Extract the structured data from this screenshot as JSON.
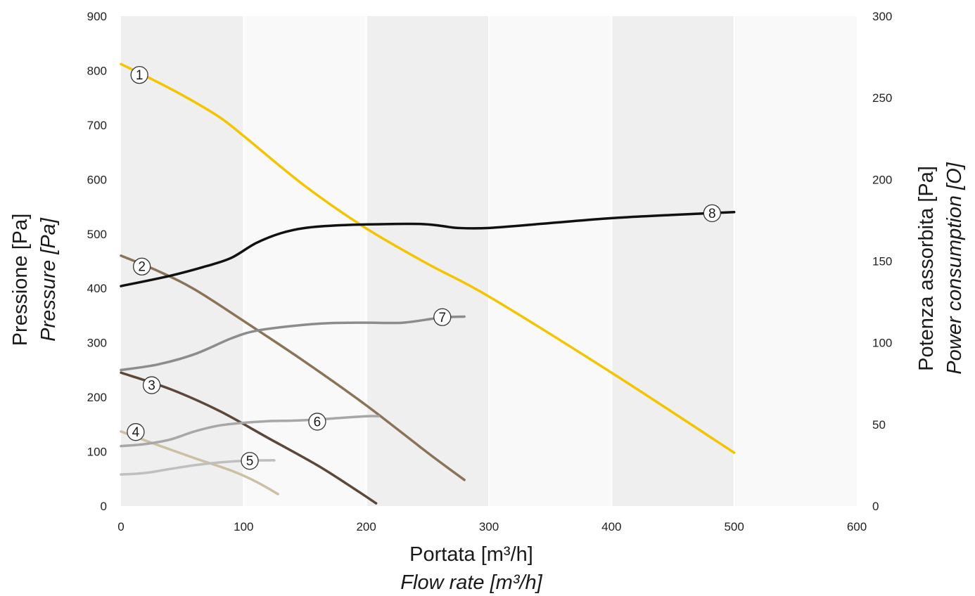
{
  "chart_data": {
    "type": "line",
    "xlabel": "Portata [m³/h]",
    "xlabel_en": "Flow rate [m³/h]",
    "ylabel": "Pressione [Pa]",
    "ylabel_en": "Pressure [Pa]",
    "y2label": "Potenza assorbita [Pa]",
    "y2label_en": "Power consumption [O]",
    "xlim": [
      0,
      600
    ],
    "ylim": [
      0,
      900
    ],
    "y2lim": [
      0,
      300
    ],
    "x_ticks": [
      "0",
      "100",
      "200",
      "300",
      "400",
      "500",
      "600"
    ],
    "y_ticks": [
      "0",
      "100",
      "200",
      "300",
      "400",
      "500",
      "600",
      "700",
      "800",
      "900"
    ],
    "y2_ticks": [
      "0",
      "50",
      "100",
      "150",
      "200",
      "250",
      "300"
    ],
    "background_bands": [
      "#efefef",
      "#f9f9f9",
      "#efefef",
      "#f9f9f9",
      "#efefef",
      "#f9f9f9"
    ],
    "grid": "vertical",
    "series": [
      {
        "label": "1",
        "color": "#f5c400",
        "axis": "left",
        "label_at": [
          15,
          792
        ],
        "points": [
          [
            0,
            812
          ],
          [
            20,
            790
          ],
          [
            50,
            755
          ],
          [
            80,
            715
          ],
          [
            100,
            680
          ],
          [
            150,
            588
          ],
          [
            200,
            510
          ],
          [
            250,
            445
          ],
          [
            300,
            385
          ],
          [
            400,
            245
          ],
          [
            500,
            98
          ]
        ]
      },
      {
        "label": "2",
        "color": "#8a7356",
        "axis": "left",
        "label_at": [
          17,
          440
        ],
        "points": [
          [
            0,
            460
          ],
          [
            30,
            432
          ],
          [
            60,
            398
          ],
          [
            100,
            340
          ],
          [
            150,
            265
          ],
          [
            200,
            185
          ],
          [
            250,
            98
          ],
          [
            280,
            48
          ]
        ]
      },
      {
        "label": "3",
        "color": "#5c4738",
        "axis": "left",
        "label_at": [
          25,
          222
        ],
        "points": [
          [
            0,
            245
          ],
          [
            40,
            215
          ],
          [
            80,
            175
          ],
          [
            120,
            125
          ],
          [
            160,
            75
          ],
          [
            190,
            32
          ],
          [
            208,
            5
          ]
        ]
      },
      {
        "label": "4",
        "color": "#cdbfa2",
        "axis": "left",
        "label_at": [
          12,
          136
        ],
        "points": [
          [
            0,
            137
          ],
          [
            30,
            112
          ],
          [
            60,
            88
          ],
          [
            90,
            65
          ],
          [
            110,
            45
          ],
          [
            128,
            22
          ]
        ]
      },
      {
        "label": "5",
        "color": "#bfbfbf",
        "axis": "right",
        "label_at": [
          105,
          83
        ],
        "points": [
          [
            0,
            19.3
          ],
          [
            20,
            20.3
          ],
          [
            40,
            22.7
          ],
          [
            60,
            25
          ],
          [
            80,
            26.7
          ],
          [
            100,
            27.7
          ],
          [
            120,
            28
          ],
          [
            125,
            28
          ]
        ]
      },
      {
        "label": "6",
        "color": "#a7a7a7",
        "axis": "right",
        "label_at": [
          160,
          155
        ],
        "points": [
          [
            0,
            36.7
          ],
          [
            20,
            38
          ],
          [
            40,
            40.7
          ],
          [
            60,
            45.7
          ],
          [
            80,
            49.3
          ],
          [
            100,
            51
          ],
          [
            120,
            52
          ],
          [
            140,
            52.3
          ],
          [
            160,
            53
          ],
          [
            180,
            54
          ],
          [
            200,
            55
          ],
          [
            210,
            55
          ]
        ]
      },
      {
        "label": "7",
        "color": "#8c8c8c",
        "axis": "right",
        "label_at": [
          262,
          347
        ],
        "points": [
          [
            0,
            83.3
          ],
          [
            30,
            86.7
          ],
          [
            60,
            93
          ],
          [
            90,
            102.7
          ],
          [
            110,
            107.3
          ],
          [
            140,
            110.3
          ],
          [
            170,
            112
          ],
          [
            200,
            112.3
          ],
          [
            230,
            112.3
          ],
          [
            260,
            115.3
          ],
          [
            280,
            116
          ]
        ]
      },
      {
        "label": "8",
        "color": "#111111",
        "axis": "right",
        "label_at": [
          482,
          538
        ],
        "points": [
          [
            0,
            134.7
          ],
          [
            40,
            141
          ],
          [
            70,
            147
          ],
          [
            90,
            152
          ],
          [
            110,
            161
          ],
          [
            130,
            167
          ],
          [
            150,
            170.3
          ],
          [
            180,
            172
          ],
          [
            220,
            172.7
          ],
          [
            245,
            172.7
          ],
          [
            260,
            171.7
          ],
          [
            275,
            170.3
          ],
          [
            300,
            170.3
          ],
          [
            350,
            173.3
          ],
          [
            400,
            176.3
          ],
          [
            450,
            178.3
          ],
          [
            500,
            180
          ]
        ]
      }
    ]
  }
}
